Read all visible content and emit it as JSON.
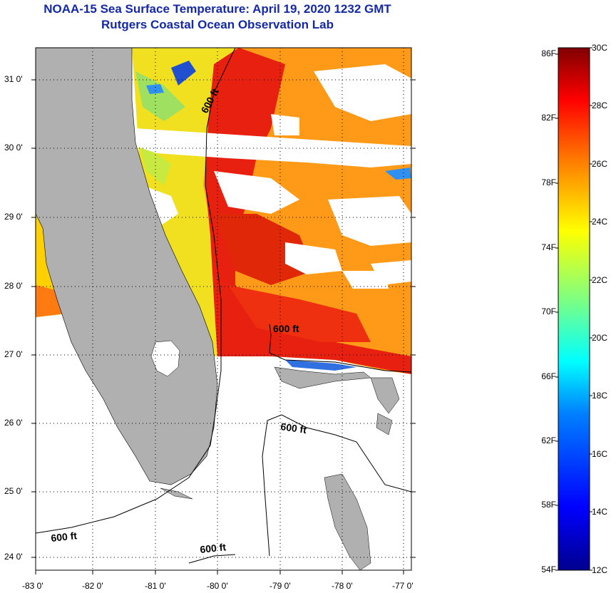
{
  "title": {
    "line1": "NOAA-15 Sea Surface Temperature:  April 19, 2020 1232 GMT",
    "line2": "Rutgers Coastal Ocean Observation Lab"
  },
  "axes": {
    "latitude_labels": [
      "31 0'",
      "30 0'",
      "29 0'",
      "28 0'",
      "27 0'",
      "26 0'",
      "25 0'",
      "24 0'"
    ],
    "longitude_labels": [
      "-83 0'",
      "-82 0'",
      "-81 0'",
      "-80 0'",
      "-79 0'",
      "-78 0'",
      "-77 0'"
    ]
  },
  "contours": {
    "label": "600 ft",
    "instances": [
      "600 ft",
      "600 ft",
      "600 ft",
      "600 ft",
      "600 ft"
    ]
  },
  "colorbar": {
    "fahrenheit_labels": [
      "86F",
      "82F",
      "78F",
      "74F",
      "70F",
      "66F",
      "62F",
      "58F",
      "54F"
    ],
    "celsius_labels": [
      "30C",
      "28C",
      "26C",
      "24C",
      "22C",
      "20C",
      "18C",
      "16C",
      "14C",
      "12C"
    ],
    "colors_low_to_high": [
      "#00008f",
      "#0000ff",
      "#0080ff",
      "#00ffff",
      "#80ff80",
      "#ffff00",
      "#ff8000",
      "#ff0000",
      "#800000"
    ]
  },
  "colors": {
    "title": "#1428a8",
    "land": "#b0b0b0",
    "ocean_no_data": "#ffffff",
    "cloud": "#ffffff"
  }
}
